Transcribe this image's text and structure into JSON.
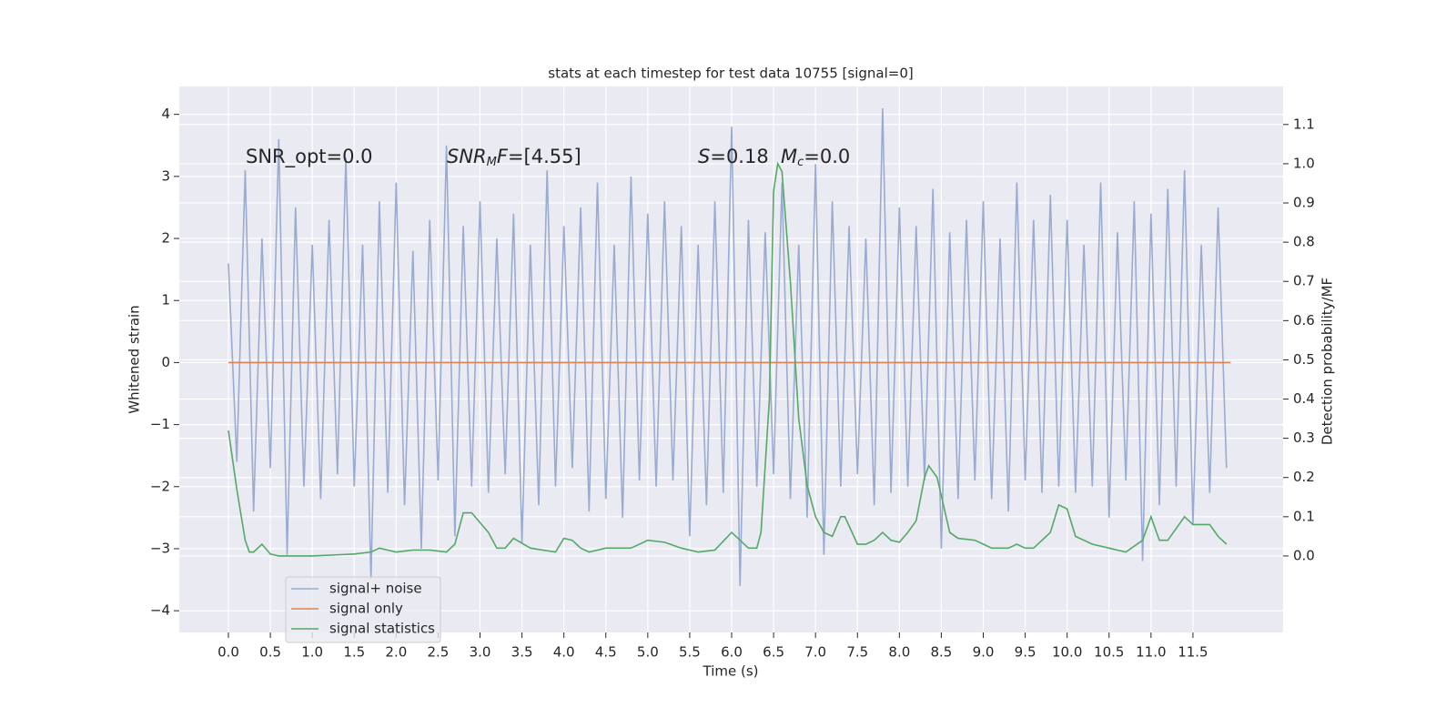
{
  "chart_data": {
    "type": "line",
    "title": "stats at each timestep for test data 10755 [signal=0]",
    "xlabel": "Time (s)",
    "ylabel": "Whitened strain",
    "y2label": "Detection probability/MF",
    "annotations": [
      [
        "SNR_opt=0.0"
      ],
      [
        "SNR",
        "M",
        "F",
        "=[4.55]"
      ],
      [
        "S",
        "=0.18"
      ],
      [
        "M",
        "c",
        "=0.0"
      ]
    ],
    "xlim": [
      -0.586,
      12.575
    ],
    "ylim": [
      -4.35,
      4.45
    ],
    "y2lim": [
      -0.195,
      1.197
    ],
    "xticks": [
      {
        "value": 0,
        "label": "0.0"
      },
      0.5,
      {
        "value": 1,
        "label": "1.0"
      },
      1.5,
      {
        "value": 2,
        "label": "2.0"
      },
      2.5,
      {
        "value": 3,
        "label": "3.0"
      },
      3.5,
      {
        "value": 4,
        "label": "4.0"
      },
      4.5,
      {
        "value": 5,
        "label": "5.0"
      },
      5.5,
      {
        "value": 6,
        "label": "6.0"
      },
      6.5,
      {
        "value": 7,
        "label": "7.0"
      },
      7.5,
      {
        "value": 8,
        "label": "8.0"
      },
      8.5,
      {
        "value": 9,
        "label": "9.0"
      },
      9.5,
      {
        "value": 10,
        "label": "10.0"
      },
      10.5,
      {
        "value": 11,
        "label": "11.0"
      },
      11.5
    ],
    "yticks": [
      {
        "value": -4,
        "label": "−4"
      },
      {
        "value": -3,
        "label": "−3"
      },
      {
        "value": -2,
        "label": "−2"
      },
      {
        "value": -1,
        "label": "−1"
      },
      0,
      1,
      2,
      3,
      4
    ],
    "y2ticks": [
      {
        "value": 0,
        "label": "0.0"
      },
      0.1,
      0.2,
      0.3,
      0.4,
      0.5,
      0.6,
      0.7,
      0.8,
      0.9,
      {
        "value": 1,
        "label": "1.0"
      },
      1.1
    ],
    "grid": true,
    "legend_loc": "lower left",
    "series": [
      {
        "name": "signal+ noise",
        "color": "#9aabd0",
        "x": [
          0.0,
          0.1,
          0.2,
          0.3,
          0.4,
          0.5,
          0.6,
          0.7,
          0.8,
          0.9,
          1.0,
          1.1,
          1.2,
          1.3,
          1.4,
          1.5,
          1.6,
          1.7,
          1.8,
          1.9,
          2.0,
          2.1,
          2.2,
          2.3,
          2.4,
          2.5,
          2.6,
          2.7,
          2.8,
          2.9,
          3.0,
          3.1,
          3.2,
          3.3,
          3.4,
          3.5,
          3.6,
          3.7,
          3.8,
          3.9,
          4.0,
          4.1,
          4.2,
          4.3,
          4.4,
          4.5,
          4.6,
          4.7,
          4.8,
          4.9,
          5.0,
          5.1,
          5.2,
          5.3,
          5.4,
          5.5,
          5.6,
          5.7,
          5.8,
          5.9,
          6.0,
          6.1,
          6.2,
          6.3,
          6.4,
          6.5,
          6.6,
          6.7,
          6.8,
          6.9,
          7.0,
          7.1,
          7.2,
          7.3,
          7.4,
          7.5,
          7.6,
          7.7,
          7.8,
          7.9,
          8.0,
          8.1,
          8.2,
          8.3,
          8.4,
          8.5,
          8.6,
          8.7,
          8.8,
          8.9,
          9.0,
          9.1,
          9.2,
          9.3,
          9.4,
          9.5,
          9.6,
          9.7,
          9.8,
          9.9,
          10.0,
          10.1,
          10.2,
          10.3,
          10.4,
          10.5,
          10.6,
          10.7,
          10.8,
          10.9,
          11.0,
          11.1,
          11.2,
          11.3,
          11.4,
          11.5,
          11.6,
          11.7,
          11.8,
          11.9
        ],
        "values": [
          1.6,
          -1.6,
          3.1,
          -2.4,
          2.0,
          -1.7,
          3.6,
          -3.1,
          2.5,
          -2.0,
          1.9,
          -2.2,
          2.3,
          -1.8,
          3.3,
          -2.0,
          1.9,
          -3.5,
          2.6,
          -2.1,
          2.9,
          -2.3,
          1.8,
          -3.0,
          2.3,
          -1.9,
          3.5,
          -2.8,
          2.2,
          -2.0,
          2.6,
          -2.1,
          2.0,
          -1.8,
          2.4,
          -2.9,
          1.9,
          -2.3,
          3.1,
          -2.0,
          2.2,
          -1.7,
          2.5,
          -2.4,
          2.9,
          -2.2,
          1.9,
          -2.5,
          3.0,
          -1.9,
          2.4,
          -2.0,
          2.6,
          -1.9,
          2.2,
          -2.8,
          1.9,
          -2.3,
          2.6,
          -2.1,
          3.8,
          -3.6,
          2.3,
          -2.0,
          2.1,
          -1.8,
          2.9,
          -2.2,
          1.9,
          -2.5,
          3.2,
          -3.1,
          2.6,
          -2.0,
          2.2,
          -1.8,
          2.0,
          -2.3,
          4.1,
          -2.1,
          2.5,
          -2.0,
          2.2,
          -1.9,
          2.8,
          -3.0,
          2.1,
          -2.2,
          2.3,
          -1.9,
          2.6,
          -2.2,
          2.0,
          -2.4,
          2.9,
          -1.9,
          2.3,
          -2.1,
          2.7,
          -2.0,
          2.3,
          -2.1,
          1.9,
          -2.0,
          2.9,
          -2.5,
          2.1,
          -1.9,
          2.6,
          -3.2,
          2.4,
          -2.3,
          2.8,
          -2.0,
          3.1,
          -2.6,
          1.9,
          -2.1,
          2.5,
          -1.7
        ]
      },
      {
        "name": "signal only",
        "color": "#dd8452",
        "x": [
          0.0,
          11.95
        ],
        "values": [
          0,
          0
        ]
      },
      {
        "name": "signal statistics",
        "color": "#55a868",
        "axis": "y2",
        "x": [
          0.0,
          0.1,
          0.2,
          0.25,
          0.3,
          0.4,
          0.5,
          0.6,
          1.0,
          1.5,
          1.7,
          1.8,
          2.0,
          2.2,
          2.4,
          2.6,
          2.7,
          2.8,
          2.9,
          3.1,
          3.2,
          3.3,
          3.4,
          3.6,
          3.9,
          4.0,
          4.1,
          4.2,
          4.3,
          4.5,
          4.6,
          4.8,
          5.0,
          5.2,
          5.4,
          5.6,
          5.8,
          6.0,
          6.1,
          6.2,
          6.3,
          6.35,
          6.45,
          6.5,
          6.55,
          6.6,
          6.7,
          6.8,
          6.9,
          7.0,
          7.1,
          7.2,
          7.3,
          7.35,
          7.5,
          7.6,
          7.7,
          7.8,
          7.9,
          8.0,
          8.1,
          8.2,
          8.3,
          8.35,
          8.45,
          8.6,
          8.7,
          8.9,
          9.0,
          9.1,
          9.3,
          9.4,
          9.5,
          9.6,
          9.8,
          9.9,
          10.0,
          10.1,
          10.3,
          10.5,
          10.7,
          10.9,
          11.0,
          11.1,
          11.2,
          11.4,
          11.5,
          11.7,
          11.8,
          11.9
        ],
        "values": [
          0.32,
          0.17,
          0.04,
          0.01,
          0.01,
          0.03,
          0.005,
          0.0,
          0.0,
          0.005,
          0.01,
          0.02,
          0.01,
          0.015,
          0.015,
          0.01,
          0.03,
          0.11,
          0.11,
          0.06,
          0.02,
          0.02,
          0.045,
          0.02,
          0.01,
          0.045,
          0.04,
          0.02,
          0.01,
          0.02,
          0.02,
          0.02,
          0.04,
          0.035,
          0.02,
          0.01,
          0.015,
          0.06,
          0.04,
          0.02,
          0.02,
          0.06,
          0.4,
          0.93,
          1.0,
          0.98,
          0.7,
          0.35,
          0.18,
          0.1,
          0.06,
          0.05,
          0.1,
          0.1,
          0.03,
          0.03,
          0.04,
          0.06,
          0.04,
          0.035,
          0.06,
          0.09,
          0.2,
          0.23,
          0.2,
          0.06,
          0.045,
          0.04,
          0.03,
          0.02,
          0.02,
          0.03,
          0.02,
          0.02,
          0.06,
          0.13,
          0.12,
          0.05,
          0.03,
          0.02,
          0.01,
          0.04,
          0.1,
          0.04,
          0.04,
          0.1,
          0.08,
          0.08,
          0.05,
          0.03
        ]
      }
    ]
  }
}
